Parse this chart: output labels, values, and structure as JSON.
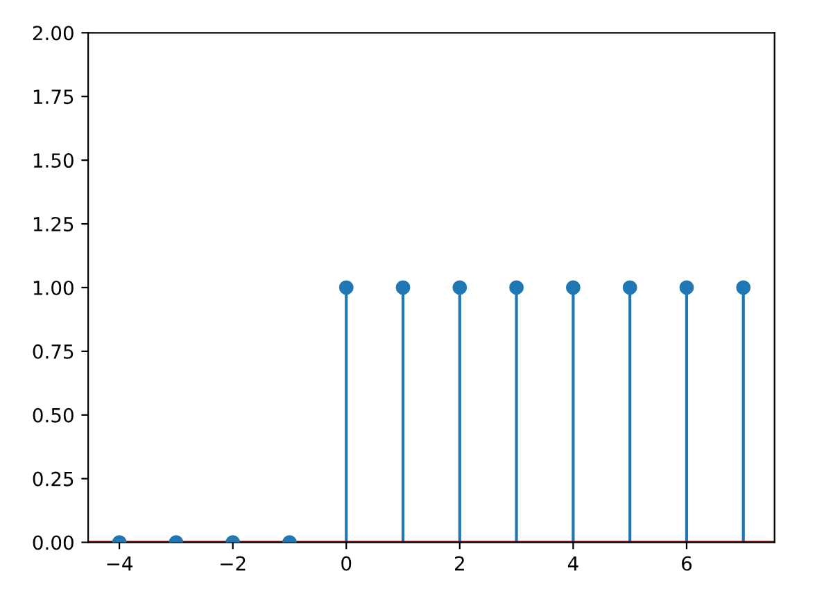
{
  "chart_data": {
    "type": "lollipop",
    "x": [
      -4,
      -3,
      -2,
      -1,
      0,
      1,
      2,
      3,
      4,
      5,
      6,
      7
    ],
    "series": [
      {
        "color": "#1f77b4",
        "values": [
          0,
          0,
          0,
          0,
          1,
          1,
          1,
          1,
          1,
          1,
          1,
          1
        ]
      }
    ],
    "marker": "circle",
    "xlim": [
      -4.55,
      7.55
    ],
    "xticks": [
      {
        "value": -4,
        "label": "−4"
      },
      {
        "value": -2,
        "label": "−2"
      },
      0,
      2,
      4,
      6
    ],
    "ylim": [
      0,
      2
    ],
    "yticks": [
      {
        "value": 0,
        "label": "0.00"
      },
      {
        "value": 0.25,
        "label": "0.25"
      },
      {
        "value": 0.5,
        "label": "0.50"
      },
      {
        "value": 0.75,
        "label": "0.75"
      },
      {
        "value": 1,
        "label": "1.00"
      },
      {
        "value": 1.25,
        "label": "1.25"
      },
      {
        "value": 1.5,
        "label": "1.50"
      },
      {
        "value": 1.75,
        "label": "1.75"
      },
      {
        "value": 2,
        "label": "2.00"
      }
    ],
    "ref_lines": [
      {
        "axis": "y",
        "value": 0,
        "color": "#c00000"
      }
    ]
  }
}
